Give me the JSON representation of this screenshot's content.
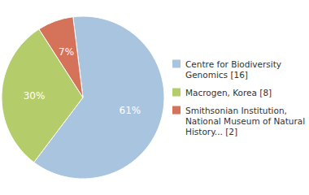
{
  "chart_data": {
    "type": "pie",
    "categories": [
      "Centre for Biodiversity\nGenomics [16]",
      "Macrogen, Korea [8]",
      "Smithsonian Institution,\nNational Museum of Natural\nHistory... [2]"
    ],
    "values": [
      61,
      30,
      7
    ],
    "value_labels": [
      "61%",
      "30%",
      "7%"
    ],
    "colors": [
      "#a8c4df",
      "#b5cc6a",
      "#d4725a"
    ],
    "data_labels": true,
    "legend": "right"
  }
}
